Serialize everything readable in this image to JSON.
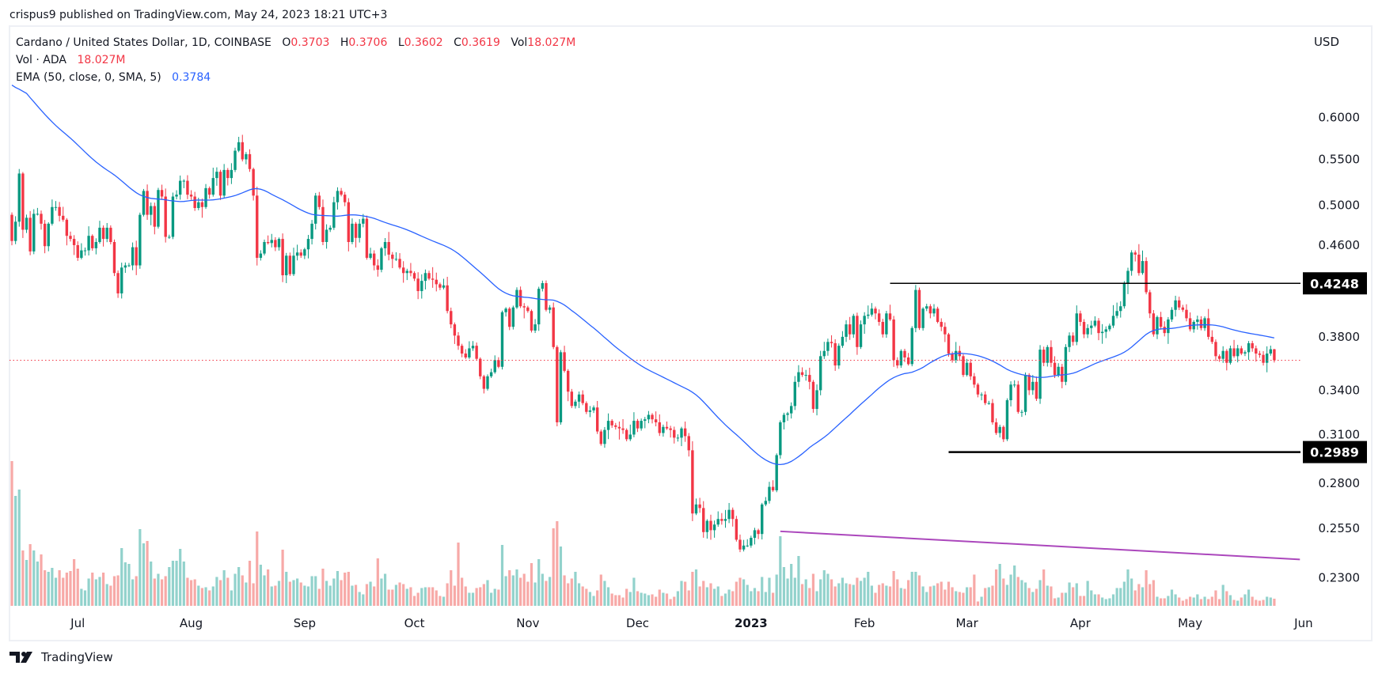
{
  "header": {
    "publisher_line": "crispus9 published on TradingView.com, May 24, 2023 18:21 UTC+3"
  },
  "legend": {
    "symbol": "Cardano / United States Dollar, 1D, COINBASE",
    "o_label": "O",
    "o": "0.3703",
    "h_label": "H",
    "h": "0.3706",
    "l_label": "L",
    "l": "0.3602",
    "c_label": "C",
    "c": "0.3619",
    "vol_label": "Vol",
    "vol": "18.027M",
    "volume_study": "Vol · ADA",
    "volume_value": "18.027M",
    "ema_study": "EMA (50, close, 0, SMA, 5)",
    "ema_value": "0.3784"
  },
  "price_axis": {
    "currency": "USD",
    "ticks": [
      "0.6000",
      "0.5500",
      "0.5000",
      "0.4600",
      "0.3800",
      "0.3400",
      "0.3100",
      "0.2800",
      "0.2550",
      "0.2300"
    ]
  },
  "footer": {
    "brand": "TradingView",
    "logo_icon": "tradingview-logo-icon"
  },
  "colors": {
    "up": "#089981",
    "down": "#f23645",
    "volume_up": "#92d2cc",
    "volume_down": "#f7a9a7",
    "ema": "#2962ff",
    "trendline": "#ab47bc",
    "level_line": "#000000",
    "last_price_line": "#f23645"
  },
  "chart_data": {
    "type": "candlestick",
    "scale": "log",
    "ylim": [
      0.2018,
      0.726
    ],
    "xlim": [
      "2022-06-12",
      "2023-06-01"
    ],
    "grid": false,
    "last_price": 0.3619,
    "x_tick_labels": [
      {
        "date": "2022-07-01",
        "label": "Jul"
      },
      {
        "date": "2022-08-01",
        "label": "Aug"
      },
      {
        "date": "2022-09-01",
        "label": "Sep"
      },
      {
        "date": "2022-10-01",
        "label": "Oct"
      },
      {
        "date": "2022-11-01",
        "label": "Nov"
      },
      {
        "date": "2022-12-01",
        "label": "Dec"
      },
      {
        "date": "2023-01-01",
        "label": "2023",
        "bold": true
      },
      {
        "date": "2023-02-01",
        "label": "Feb"
      },
      {
        "date": "2023-03-01",
        "label": "Mar"
      },
      {
        "date": "2023-04-01",
        "label": "Apr"
      },
      {
        "date": "2023-05-01",
        "label": "May"
      },
      {
        "date": "2023-06-01",
        "label": "Jun"
      }
    ],
    "months": [
      {
        "month": "2022-06",
        "first_day": 13,
        "first_open": 0.49,
        "close": [
          0.464,
          0.483,
          0.534,
          0.475,
          0.487,
          0.454,
          0.491,
          0.491,
          0.481,
          0.459,
          0.481,
          0.498,
          0.498,
          0.489,
          0.485,
          0.469,
          0.466,
          0.46
        ],
        "volume_m": [
          366,
          278,
          294,
          140,
          116,
          156,
          140,
          112,
          130,
          90,
          86,
          96,
          71,
          90,
          71,
          84,
          88,
          118
        ]
      },
      {
        "month": "2022-07",
        "first_day": 1,
        "close": [
          0.448,
          0.455,
          0.455,
          0.469,
          0.457,
          0.463,
          0.477,
          0.466,
          0.477,
          0.463,
          0.434,
          0.416,
          0.439,
          0.441,
          0.441,
          0.458,
          0.441,
          0.49,
          0.515,
          0.49,
          0.499,
          0.478,
          0.516,
          0.509,
          0.468,
          0.468,
          0.509,
          0.511,
          0.526,
          0.526,
          0.511
        ],
        "volume_m": [
          94,
          43,
          39,
          69,
          84,
          67,
          73,
          84,
          55,
          51,
          75,
          77,
          146,
          110,
          106,
          67,
          75,
          194,
          158,
          164,
          112,
          69,
          81,
          67,
          75,
          98,
          114,
          114,
          144,
          112,
          71
        ]
      },
      {
        "month": "2022-08",
        "first_day": 1,
        "close": [
          0.509,
          0.497,
          0.503,
          0.498,
          0.518,
          0.511,
          0.529,
          0.536,
          0.51,
          0.538,
          0.529,
          0.538,
          0.56,
          0.57,
          0.55,
          0.556,
          0.539,
          0.51,
          0.448,
          0.452,
          0.463,
          0.462,
          0.465,
          0.458,
          0.466,
          0.432,
          0.45,
          0.433,
          0.45,
          0.453,
          0.45
        ],
        "volume_m": [
          65,
          67,
          51,
          45,
          47,
          39,
          49,
          73,
          65,
          90,
          71,
          39,
          81,
          98,
          77,
          59,
          114,
          57,
          188,
          104,
          77,
          92,
          49,
          51,
          63,
          142,
          86,
          61,
          65,
          69,
          59
        ]
      },
      {
        "month": "2022-09",
        "first_day": 1,
        "close": [
          0.456,
          0.466,
          0.481,
          0.51,
          0.498,
          0.463,
          0.475,
          0.477,
          0.503,
          0.515,
          0.511,
          0.503,
          0.463,
          0.481,
          0.467,
          0.481,
          0.486,
          0.448,
          0.452,
          0.441,
          0.437,
          0.457,
          0.463,
          0.451,
          0.447,
          0.447,
          0.439,
          0.434,
          0.436,
          0.434
        ],
        "volume_m": [
          51,
          49,
          75,
          75,
          43,
          94,
          63,
          51,
          69,
          88,
          65,
          84,
          86,
          51,
          53,
          35,
          29,
          55,
          61,
          49,
          120,
          69,
          81,
          41,
          41,
          53,
          59,
          55,
          43,
          47
        ]
      },
      {
        "month": "2022-10",
        "first_day": 1,
        "close": [
          0.429,
          0.418,
          0.427,
          0.434,
          0.429,
          0.428,
          0.424,
          0.421,
          0.423,
          0.401,
          0.39,
          0.381,
          0.373,
          0.367,
          0.364,
          0.371,
          0.373,
          0.363,
          0.35,
          0.341,
          0.35,
          0.353,
          0.362,
          0.357,
          0.4,
          0.403,
          0.388,
          0.404,
          0.419,
          0.405,
          0.404
        ],
        "volume_m": [
          25,
          33,
          45,
          47,
          47,
          47,
          39,
          25,
          23,
          57,
          90,
          51,
          160,
          71,
          49,
          33,
          33,
          45,
          47,
          55,
          65,
          33,
          43,
          41,
          154,
          75,
          90,
          77,
          92,
          71,
          81
        ]
      },
      {
        "month": "2022-11",
        "first_day": 1,
        "close": [
          0.401,
          0.385,
          0.39,
          0.42,
          0.425,
          0.402,
          0.404,
          0.372,
          0.318,
          0.368,
          0.354,
          0.339,
          0.329,
          0.332,
          0.337,
          0.331,
          0.325,
          0.326,
          0.328,
          0.312,
          0.304,
          0.313,
          0.319,
          0.316,
          0.315,
          0.314,
          0.313,
          0.307,
          0.31,
          0.319
        ],
        "volume_m": [
          61,
          108,
          59,
          118,
          81,
          63,
          73,
          196,
          214,
          150,
          77,
          57,
          69,
          86,
          57,
          49,
          43,
          35,
          25,
          39,
          79,
          63,
          47,
          31,
          27,
          27,
          21,
          43,
          35,
          71
        ]
      },
      {
        "month": "2022-12",
        "first_day": 1,
        "close": [
          0.314,
          0.319,
          0.32,
          0.323,
          0.32,
          0.318,
          0.311,
          0.315,
          0.314,
          0.313,
          0.308,
          0.308,
          0.314,
          0.309,
          0.3,
          0.263,
          0.268,
          0.266,
          0.253,
          0.259,
          0.254,
          0.257,
          0.26,
          0.259,
          0.26,
          0.265,
          0.26,
          0.249,
          0.244,
          0.246,
          0.246
        ],
        "volume_m": [
          37,
          33,
          31,
          27,
          29,
          23,
          41,
          33,
          31,
          17,
          23,
          37,
          63,
          61,
          39,
          86,
          92,
          49,
          63,
          47,
          57,
          43,
          49,
          25,
          31,
          41,
          37,
          61,
          71,
          67,
          53
        ]
      },
      {
        "month": "2023-01",
        "first_day": 1,
        "close": [
          0.25,
          0.254,
          0.252,
          0.268,
          0.27,
          0.278,
          0.276,
          0.297,
          0.318,
          0.323,
          0.324,
          0.329,
          0.346,
          0.353,
          0.351,
          0.351,
          0.346,
          0.327,
          0.34,
          0.365,
          0.369,
          0.376,
          0.375,
          0.358,
          0.373,
          0.38,
          0.39,
          0.382,
          0.397,
          0.372,
          0.39
        ],
        "volume_m": [
          37,
          45,
          37,
          73,
          35,
          71,
          33,
          79,
          176,
          98,
          69,
          106,
          71,
          126,
          55,
          67,
          45,
          81,
          37,
          67,
          90,
          81,
          67,
          49,
          57,
          71,
          57,
          55,
          53,
          71,
          63
        ]
      },
      {
        "month": "2023-02",
        "first_day": 1,
        "close": [
          0.397,
          0.398,
          0.403,
          0.399,
          0.392,
          0.382,
          0.399,
          0.394,
          0.362,
          0.358,
          0.369,
          0.364,
          0.359,
          0.387,
          0.419,
          0.387,
          0.403,
          0.405,
          0.399,
          0.403,
          0.392,
          0.388,
          0.382,
          0.367,
          0.362,
          0.369,
          0.365,
          0.351
        ],
        "volume_m": [
          71,
          86,
          51,
          33,
          53,
          57,
          51,
          49,
          88,
          67,
          45,
          43,
          65,
          86,
          86,
          77,
          49,
          35,
          49,
          51,
          57,
          61,
          41,
          61,
          47,
          37,
          35,
          33
        ]
      },
      {
        "month": "2023-03",
        "first_day": 1,
        "close": [
          0.36,
          0.35,
          0.344,
          0.337,
          0.337,
          0.331,
          0.331,
          0.318,
          0.311,
          0.315,
          0.307,
          0.333,
          0.344,
          0.344,
          0.325,
          0.325,
          0.351,
          0.34,
          0.346,
          0.334,
          0.37,
          0.36,
          0.372,
          0.36,
          0.351,
          0.357,
          0.346,
          0.372,
          0.381,
          0.376,
          0.399
        ],
        "volume_m": [
          47,
          47,
          79,
          11,
          23,
          45,
          47,
          51,
          92,
          106,
          69,
          53,
          79,
          102,
          73,
          65,
          59,
          45,
          35,
          43,
          65,
          92,
          51,
          49,
          19,
          21,
          33,
          33,
          59,
          47,
          57
        ]
      },
      {
        "month": "2023-04",
        "first_day": 1,
        "close": [
          0.392,
          0.382,
          0.387,
          0.389,
          0.393,
          0.383,
          0.384,
          0.386,
          0.389,
          0.397,
          0.401,
          0.405,
          0.425,
          0.436,
          0.453,
          0.451,
          0.434,
          0.445,
          0.417,
          0.399,
          0.382,
          0.396,
          0.388,
          0.383,
          0.394,
          0.402,
          0.41,
          0.404,
          0.402,
          0.395
        ],
        "volume_m": [
          25,
          25,
          63,
          39,
          29,
          29,
          21,
          17,
          19,
          29,
          45,
          45,
          61,
          92,
          69,
          39,
          55,
          47,
          90,
          55,
          65,
          23,
          19,
          19,
          25,
          41,
          29,
          21,
          13,
          17
        ]
      },
      {
        "month": "2023-05",
        "first_day": 1,
        "close": [
          0.386,
          0.392,
          0.394,
          0.387,
          0.395,
          0.38,
          0.376,
          0.365,
          0.363,
          0.369,
          0.36,
          0.371,
          0.365,
          0.371,
          0.367,
          0.368,
          0.375,
          0.371,
          0.367,
          0.366,
          0.36,
          0.367,
          0.3703,
          0.3619
        ],
        "volume_m": [
          23,
          21,
          29,
          17,
          23,
          17,
          23,
          39,
          17,
          53,
          37,
          27,
          15,
          13,
          21,
          29,
          41,
          23,
          15,
          13,
          15,
          23,
          21,
          18.027
        ]
      }
    ],
    "ema": {
      "period": 50,
      "smoothing": "SMA",
      "smoothing_length": 5,
      "initial": 0.642
    },
    "drawings": [
      {
        "type": "horizontal-ray",
        "name": "resistance-line",
        "price": 0.4248,
        "from": "2023-02-08",
        "label": "0.4248"
      },
      {
        "type": "horizontal-ray",
        "name": "support-line",
        "price": 0.2989,
        "from": "2023-02-24",
        "label": "0.2989"
      },
      {
        "type": "trendline",
        "name": "volume-trendline",
        "from": [
          "2023-01-09",
          0.2534
        ],
        "to": [
          "2023-05-31",
          0.239
        ]
      }
    ]
  }
}
